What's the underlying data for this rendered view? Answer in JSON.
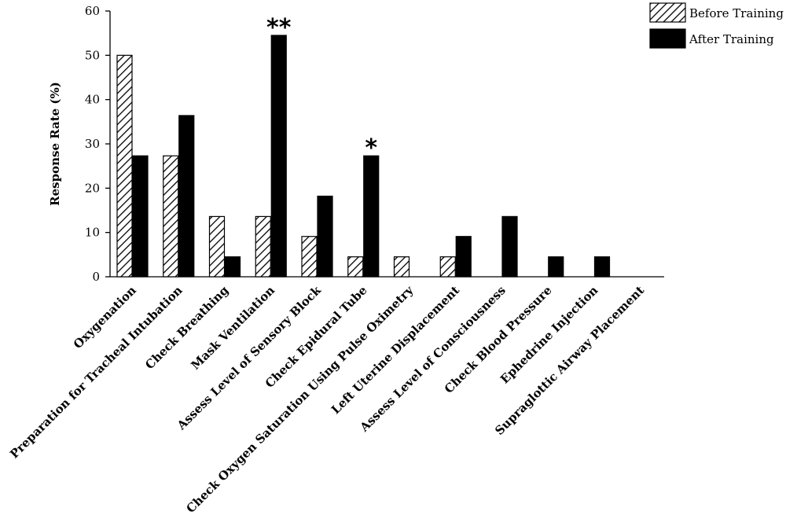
{
  "chart_data": {
    "type": "bar",
    "title": "",
    "xlabel": "",
    "ylabel": "Response Rate (%)",
    "ylim": [
      0,
      60
    ],
    "yticks": [
      0,
      10,
      20,
      30,
      40,
      50,
      60
    ],
    "grid": false,
    "legend_position": "top-right",
    "categories": [
      "Oxygenation",
      "Preparation for Tracheal Intubation",
      "Check Breathing",
      "Mask Ventilation",
      "Assess Level of Sensory Block",
      "Check Epidural Tube",
      "Check Oxygen Saturation Using Pulse Oximetry",
      "Left Uterine Displacement",
      "Assess Level of Consciousness",
      "Check Blood Pressure",
      "Ephedrine Injection",
      "Supraglottic Airway Placement"
    ],
    "series": [
      {
        "name": "Before Training",
        "pattern": "hatched",
        "color": "#000000",
        "values": [
          50,
          27.3,
          13.6,
          13.6,
          9.1,
          4.5,
          4.5,
          4.5,
          0,
          0,
          0,
          0
        ]
      },
      {
        "name": "After Training",
        "pattern": "solid",
        "color": "#000000",
        "values": [
          27.3,
          36.4,
          4.5,
          54.5,
          18.2,
          27.3,
          0,
          9.1,
          13.6,
          4.5,
          4.5,
          0
        ]
      }
    ],
    "annotations": [
      {
        "category": "Mask Ventilation",
        "series": "After Training",
        "text": "**"
      },
      {
        "category": "Check Epidural Tube",
        "series": "After Training",
        "text": "*"
      }
    ]
  }
}
